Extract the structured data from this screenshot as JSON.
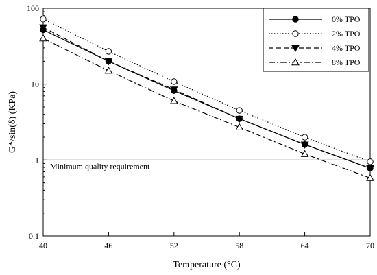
{
  "chart_data": {
    "type": "line",
    "xlabel": "Temperature (°C)",
    "ylabel": "G*/sin(δ) (KPa)",
    "yscale": "log",
    "xlim": [
      40,
      70
    ],
    "ylim": [
      0.1,
      100
    ],
    "x_ticks": [
      40,
      46,
      52,
      58,
      64,
      70
    ],
    "y_ticks": [
      0.1,
      1,
      10,
      100
    ],
    "x_tick_labels": [
      "40",
      "46",
      "52",
      "58",
      "64",
      "70"
    ],
    "y_tick_labels": [
      "0.1",
      "1",
      "10",
      "100"
    ],
    "grid": false,
    "legend_position": "top-right",
    "x": [
      40,
      46,
      52,
      58,
      64,
      70
    ],
    "series": [
      {
        "name": "0% TPO",
        "marker": "filled-circle",
        "line": "solid",
        "values": [
          52,
          20,
          8.2,
          3.5,
          1.6,
          0.78
        ]
      },
      {
        "name": "2% TPO",
        "marker": "open-circle",
        "line": "dotted",
        "values": [
          72,
          27,
          10.8,
          4.5,
          2.0,
          0.95
        ]
      },
      {
        "name": "4% TPO",
        "marker": "filled-triangle-down",
        "line": "dashed",
        "values": [
          56,
          20,
          8.5,
          3.5,
          1.6,
          0.78
        ]
      },
      {
        "name": "8% TPO",
        "marker": "open-triangle-up",
        "line": "dash-dot",
        "values": [
          40,
          15,
          6.0,
          2.7,
          1.2,
          0.58
        ]
      }
    ],
    "reference_line": {
      "y": 1,
      "label": "Minimum quality requirement"
    }
  }
}
